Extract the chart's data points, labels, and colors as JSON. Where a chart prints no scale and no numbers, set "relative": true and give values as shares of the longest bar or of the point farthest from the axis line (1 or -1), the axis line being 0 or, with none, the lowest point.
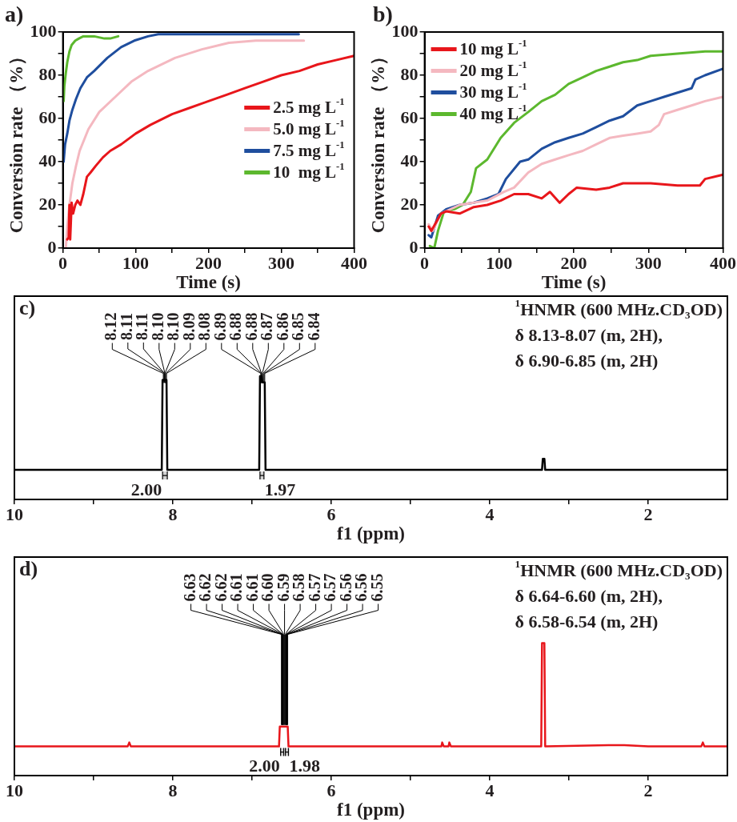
{
  "chart_data": [
    {
      "type": "line",
      "title": "a)",
      "xlabel": "Time (s)",
      "ylabel": "Conversion rate （%）",
      "xlim": [
        0,
        400
      ],
      "ylim": [
        0,
        100
      ],
      "xticks": [
        0,
        {
          "value": 50,
          "label": null
        },
        100,
        {
          "value": 150,
          "label": null
        },
        200,
        {
          "value": 250,
          "label": null
        },
        300,
        {
          "value": 350,
          "label": null
        },
        400
      ],
      "yticks": [
        0,
        {
          "value": 10,
          "label": null
        },
        20,
        {
          "value": 30,
          "label": null
        },
        40,
        {
          "value": 50,
          "label": null
        },
        60,
        {
          "value": 70,
          "label": null
        },
        80,
        {
          "value": 90,
          "label": null
        },
        100
      ],
      "legend": "right",
      "series": [
        {
          "name": "2.5 mg L$^{-1}$",
          "color": "#e8161b",
          "x": [
            6,
            8,
            9,
            10,
            12,
            14,
            17,
            20,
            24,
            28,
            33,
            38,
            45,
            55,
            65,
            80,
            100,
            120,
            150,
            175,
            200,
            225,
            250,
            275,
            300,
            325,
            350,
            375,
            400
          ],
          "values": [
            4,
            5,
            20,
            4,
            21,
            16,
            20,
            22,
            20,
            25,
            33,
            35,
            38,
            42,
            45,
            48,
            53,
            57,
            62,
            65,
            68,
            71,
            74,
            77,
            80,
            82,
            85,
            87,
            89
          ]
        },
        {
          "name": "5.0 mg L$^{-1}$",
          "color": "#f4b8c0",
          "x": [
            4,
            6,
            9,
            13,
            18,
            23,
            35,
            50,
            72,
            94,
            117,
            154,
            191,
            228,
            265,
            302,
            331
          ],
          "values": [
            0,
            10,
            20,
            30,
            38,
            45,
            55,
            63,
            70,
            77,
            82,
            88,
            92,
            95,
            96,
            96,
            96
          ]
        },
        {
          "name": "7.5 mg L$^{-1}$",
          "color": "#1f4e9e",
          "x": [
            1,
            3,
            6,
            9,
            13,
            18,
            24,
            33,
            43,
            61,
            80,
            98,
            117,
            131,
            200,
            260,
            324
          ],
          "values": [
            40,
            48,
            53,
            59,
            64,
            69,
            74,
            79,
            82,
            88,
            93,
            96,
            98,
            99,
            99,
            99,
            99
          ]
        },
        {
          "name": "10  mg L$^{-1}$",
          "color": "#5cb82e",
          "x": [
            1,
            2,
            4,
            6,
            9,
            12,
            17,
            22,
            28,
            43,
            57,
            65,
            76
          ],
          "values": [
            68,
            75,
            81,
            86,
            91,
            94,
            96,
            97,
            98,
            98,
            97,
            97,
            98
          ]
        }
      ]
    },
    {
      "type": "line",
      "title": "b)",
      "xlabel": "Time (s)",
      "ylabel": "Conversion rate （%）",
      "xlim": [
        0,
        400
      ],
      "ylim": [
        0,
        100
      ],
      "xticks": [
        0,
        {
          "value": 50,
          "label": null
        },
        100,
        {
          "value": 150,
          "label": null
        },
        200,
        {
          "value": 250,
          "label": null
        },
        300,
        {
          "value": 350,
          "label": null
        },
        400
      ],
      "yticks": [
        0,
        {
          "value": 10,
          "label": null
        },
        20,
        {
          "value": 30,
          "label": null
        },
        40,
        {
          "value": 50,
          "label": null
        },
        60,
        {
          "value": 70,
          "label": null
        },
        80,
        {
          "value": 90,
          "label": null
        },
        100
      ],
      "legend": "top left",
      "series": [
        {
          "name": "10 mg L$^{-1}$",
          "color": "#e8161b",
          "x": [
            5.5,
            9,
            22,
            29,
            47,
            66,
            84,
            102,
            120,
            139,
            157,
            168,
            181,
            193,
            204,
            230,
            248,
            266,
            303,
            339,
            369,
            376,
            400
          ],
          "values": [
            10,
            8,
            16,
            17,
            16,
            19,
            20,
            22,
            25,
            25,
            23,
            26,
            21,
            25,
            28,
            27,
            28,
            30,
            30,
            29,
            29,
            32,
            34
          ]
        },
        {
          "name": "20 mg L$^{-1}$",
          "color": "#f4b8c0",
          "x": [
            5.5,
            11,
            22,
            47,
            84,
            106,
            120,
            139,
            157,
            175,
            193,
            212,
            230,
            248,
            266,
            285,
            303,
            314,
            321,
            339,
            358,
            376,
            400
          ],
          "values": [
            11,
            8,
            16,
            20,
            22,
            26,
            28,
            35,
            39,
            41,
            43,
            45,
            48,
            51,
            52,
            53,
            54,
            57,
            62,
            64,
            66,
            68,
            70
          ]
        },
        {
          "name": "30 mg L$^{-1}$",
          "color": "#1f4e9e",
          "x": [
            5.5,
            9,
            18,
            29,
            47,
            66,
            84,
            99,
            109,
            128,
            139,
            157,
            175,
            193,
            212,
            230,
            248,
            266,
            285,
            303,
            321,
            358,
            363,
            376,
            400
          ],
          "values": [
            6,
            5,
            15,
            18,
            20,
            21,
            23,
            25,
            32,
            40,
            41,
            46,
            49,
            51,
            53,
            56,
            59,
            61,
            66,
            68,
            70,
            74,
            78,
            80,
            83
          ]
        },
        {
          "name": "40 mg L$^{-1}$",
          "color": "#5cb82e",
          "x": [
            7,
            13,
            18,
            26,
            40,
            51,
            62,
            69,
            84,
            102,
            120,
            139,
            157,
            175,
            193,
            212,
            230,
            248,
            266,
            285,
            303,
            339,
            376,
            400
          ],
          "values": [
            1,
            0,
            8,
            17,
            18,
            20,
            26,
            37,
            41,
            51,
            58,
            63,
            68,
            71,
            76,
            79,
            82,
            84,
            86,
            87,
            89,
            90,
            91,
            91
          ]
        }
      ]
    },
    {
      "type": "line",
      "title": "c)",
      "xlabel": "f1 (ppm)",
      "relative": true,
      "tick_labels": "x",
      "xlim": [
        10,
        1
      ],
      "xticks": [
        10,
        {
          "value": 9,
          "label": null
        },
        8,
        {
          "value": 7,
          "label": null
        },
        6,
        {
          "value": 5,
          "label": null
        },
        4,
        {
          "value": 3,
          "label": null
        },
        2
      ],
      "series": [
        {
          "color": "#000000",
          "x": [
            10,
            8.14,
            8.13,
            8.08,
            8.07,
            6.91,
            6.9,
            6.88,
            6.87,
            6.84,
            6.83,
            3.34,
            3.33,
            3.31,
            3.3,
            1
          ],
          "values": [
            0.24,
            0.24,
            0.97,
            0.97,
            0.24,
            0.24,
            1,
            1,
            0.95,
            0.95,
            0.24,
            0.24,
            0.33,
            0.33,
            0.24,
            0.24
          ]
        }
      ],
      "bands": [
        {
          "axis": "x",
          "from": 8.13,
          "to": 8.07,
          "label": "2.00"
        },
        {
          "axis": "x",
          "from": 6.9,
          "to": 6.85,
          "label": "1.97"
        }
      ],
      "annotations": [
        "$^{1}$HNMR (600 MHz.CD₃OD)",
        "δ 8.13-8.07 (m, 2H),",
        "δ 6.90-6.85 (m, 2H)",
        {
          "text": "8.12",
          "x": 8.12,
          "y": 0.97
        },
        {
          "text": "8.11",
          "x": 8.11,
          "y": 0.97
        },
        {
          "text": "8.11",
          "x": 8.11,
          "y": 0.97
        },
        {
          "text": "8.10",
          "x": 8.1,
          "y": 0.97
        },
        {
          "text": "8.10",
          "x": 8.1,
          "y": 0.97
        },
        {
          "text": "8.09",
          "x": 8.09,
          "y": 0.97
        },
        {
          "text": "8.08",
          "x": 8.08,
          "y": 0.97
        },
        {
          "text": "6.89",
          "x": 6.89,
          "y": 1
        },
        {
          "text": "6.88",
          "x": 6.88,
          "y": 1
        },
        {
          "text": "6.88",
          "x": 6.88,
          "y": 1
        },
        {
          "text": "6.87",
          "x": 6.87,
          "y": 0.95
        },
        {
          "text": "6.86",
          "x": 6.86,
          "y": 0.95
        },
        {
          "text": "6.85",
          "x": 6.85,
          "y": 0.95
        },
        {
          "text": "6.84",
          "x": 6.84,
          "y": 0.95
        }
      ]
    },
    {
      "type": "line",
      "title": "d)",
      "xlabel": "f1 (ppm)",
      "relative": true,
      "tick_labels": "x",
      "xlim": [
        10,
        1
      ],
      "xticks": [
        10,
        {
          "value": 9,
          "label": null
        },
        8,
        {
          "value": 7,
          "label": null
        },
        6,
        {
          "value": 5,
          "label": null
        },
        4,
        {
          "value": 3,
          "label": null
        },
        2
      ],
      "series": [
        {
          "color": "#e8161b",
          "x": [
            10,
            8.57,
            8.55,
            8.53,
            6.66,
            6.65,
            6.55,
            6.54,
            4.61,
            4.6,
            4.58,
            4.52,
            4.51,
            4.49,
            3.35,
            3.34,
            3.31,
            3.3,
            2.5,
            2.3,
            2,
            1.33,
            1.31,
            1.29,
            1
          ],
          "values": [
            0.22,
            0.22,
            0.25,
            0.22,
            0.22,
            0.37,
            0.37,
            0.22,
            0.22,
            0.25,
            0.22,
            0.22,
            0.25,
            0.22,
            0.22,
            1,
            1,
            0.22,
            0.23,
            0.23,
            0.22,
            0.22,
            0.25,
            0.22,
            0.22
          ]
        }
      ],
      "bands": [
        {
          "axis": "x",
          "from": 6.64,
          "to": 6.6,
          "label": "2.00"
        },
        {
          "axis": "x",
          "from": 6.58,
          "to": 6.54,
          "label": "1.98"
        }
      ],
      "annotations": [
        "$^{1}$HNMR (600 MHz.CD₃OD)",
        "δ 6.64-6.60 (m, 2H),",
        "δ 6.58-6.54 (m, 2H)",
        {
          "text": "6.63",
          "x": 6.63,
          "y": 0.37
        },
        {
          "text": "6.62",
          "x": 6.62,
          "y": 0.37
        },
        {
          "text": "6.62",
          "x": 6.62,
          "y": 0.37
        },
        {
          "text": "6.61",
          "x": 6.61,
          "y": 0.37
        },
        {
          "text": "6.61",
          "x": 6.61,
          "y": 0.37
        },
        {
          "text": "6.60",
          "x": 6.6,
          "y": 0.37
        },
        {
          "text": "6.59",
          "x": 6.59,
          "y": 0.37
        },
        {
          "text": "6.58",
          "x": 6.58,
          "y": 0.37
        },
        {
          "text": "6.57",
          "x": 6.57,
          "y": 0.37
        },
        {
          "text": "6.57",
          "x": 6.57,
          "y": 0.37
        },
        {
          "text": "6.56",
          "x": 6.56,
          "y": 0.37
        },
        {
          "text": "6.56",
          "x": 6.56,
          "y": 0.37
        },
        {
          "text": "6.55",
          "x": 6.55,
          "y": 0.37
        }
      ]
    }
  ]
}
